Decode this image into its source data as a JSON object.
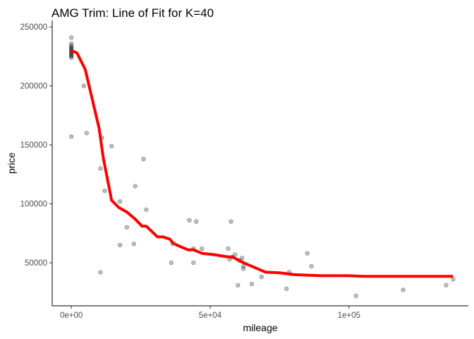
{
  "chart_data": {
    "type": "scatter",
    "title": "AMG Trim: Line of Fit for K=40",
    "xlabel": "mileage",
    "ylabel": "price",
    "xlim": [
      -6900,
      143000
    ],
    "ylim": [
      13500,
      255500
    ],
    "x_ticks": [
      {
        "value": 0,
        "label": "0e+00"
      },
      {
        "value": 50000,
        "label": "5e+04"
      },
      {
        "value": 100000,
        "label": "1e+05"
      }
    ],
    "y_ticks": [
      {
        "value": 50000,
        "label": "50000"
      },
      {
        "value": 100000,
        "label": "100000"
      },
      {
        "value": 150000,
        "label": "150000"
      },
      {
        "value": 200000,
        "label": "200000"
      },
      {
        "value": 250000,
        "label": "250000"
      }
    ],
    "grid": false,
    "legend": "none",
    "point_color": "#000000",
    "point_opacity": 0.25,
    "line_color": "#ff0000",
    "series": [
      {
        "type": "scatter",
        "points": [
          [
            0,
            241000
          ],
          [
            0,
            236000
          ],
          [
            0,
            234000
          ],
          [
            0,
            233000
          ],
          [
            0,
            232000
          ],
          [
            0,
            231000
          ],
          [
            0,
            230000
          ],
          [
            0,
            229000
          ],
          [
            0,
            228000
          ],
          [
            0,
            227000
          ],
          [
            0,
            226000
          ],
          [
            0,
            225000
          ],
          [
            0,
            224000
          ],
          [
            0,
            157000
          ],
          [
            4500,
            200000
          ],
          [
            5500,
            160000
          ],
          [
            10500,
            130000
          ],
          [
            10500,
            42000
          ],
          [
            11000,
            156000
          ],
          [
            12000,
            111000
          ],
          [
            14500,
            149000
          ],
          [
            17500,
            102000
          ],
          [
            17500,
            65000
          ],
          [
            20000,
            80000
          ],
          [
            22500,
            66000
          ],
          [
            23000,
            115000
          ],
          [
            26000,
            138000
          ],
          [
            27000,
            95000
          ],
          [
            36000,
            50000
          ],
          [
            36500,
            66000
          ],
          [
            42500,
            86000
          ],
          [
            44000,
            62000
          ],
          [
            44000,
            50000
          ],
          [
            45000,
            85000
          ],
          [
            47000,
            62000
          ],
          [
            56500,
            62000
          ],
          [
            57000,
            53000
          ],
          [
            57500,
            85000
          ],
          [
            58000,
            55000
          ],
          [
            59000,
            57000
          ],
          [
            60000,
            31000
          ],
          [
            60500,
            52000
          ],
          [
            61500,
            54000
          ],
          [
            62000,
            47000
          ],
          [
            62000,
            45000
          ],
          [
            65000,
            32000
          ],
          [
            68500,
            38000
          ],
          [
            77500,
            28000
          ],
          [
            78500,
            42000
          ],
          [
            85000,
            58000
          ],
          [
            86500,
            47000
          ],
          [
            102500,
            22000
          ],
          [
            119500,
            27000
          ],
          [
            135000,
            31000
          ],
          [
            137500,
            36000
          ]
        ]
      },
      {
        "type": "line",
        "points": [
          [
            0,
            230000
          ],
          [
            2000,
            228000
          ],
          [
            5000,
            214000
          ],
          [
            10000,
            164000
          ],
          [
            11500,
            139000
          ],
          [
            14500,
            103000
          ],
          [
            17000,
            97000
          ],
          [
            20000,
            93000
          ],
          [
            23000,
            87000
          ],
          [
            25500,
            81000
          ],
          [
            27000,
            81000
          ],
          [
            31000,
            72000
          ],
          [
            33000,
            72000
          ],
          [
            35500,
            70000
          ],
          [
            36500,
            67000
          ],
          [
            38000,
            65000
          ],
          [
            42000,
            61000
          ],
          [
            44000,
            61000
          ],
          [
            47000,
            58000
          ],
          [
            51000,
            57000
          ],
          [
            56500,
            55000
          ],
          [
            58000,
            55000
          ],
          [
            62000,
            50000
          ],
          [
            65000,
            47000
          ],
          [
            70000,
            42000
          ],
          [
            75000,
            41500
          ],
          [
            80000,
            40000
          ],
          [
            85000,
            39500
          ],
          [
            90000,
            39000
          ],
          [
            95000,
            39000
          ],
          [
            100000,
            39000
          ],
          [
            105000,
            38500
          ],
          [
            110000,
            38500
          ],
          [
            115000,
            38500
          ],
          [
            120000,
            38500
          ],
          [
            125000,
            38500
          ],
          [
            130000,
            38500
          ],
          [
            137500,
            38500
          ]
        ]
      }
    ]
  }
}
